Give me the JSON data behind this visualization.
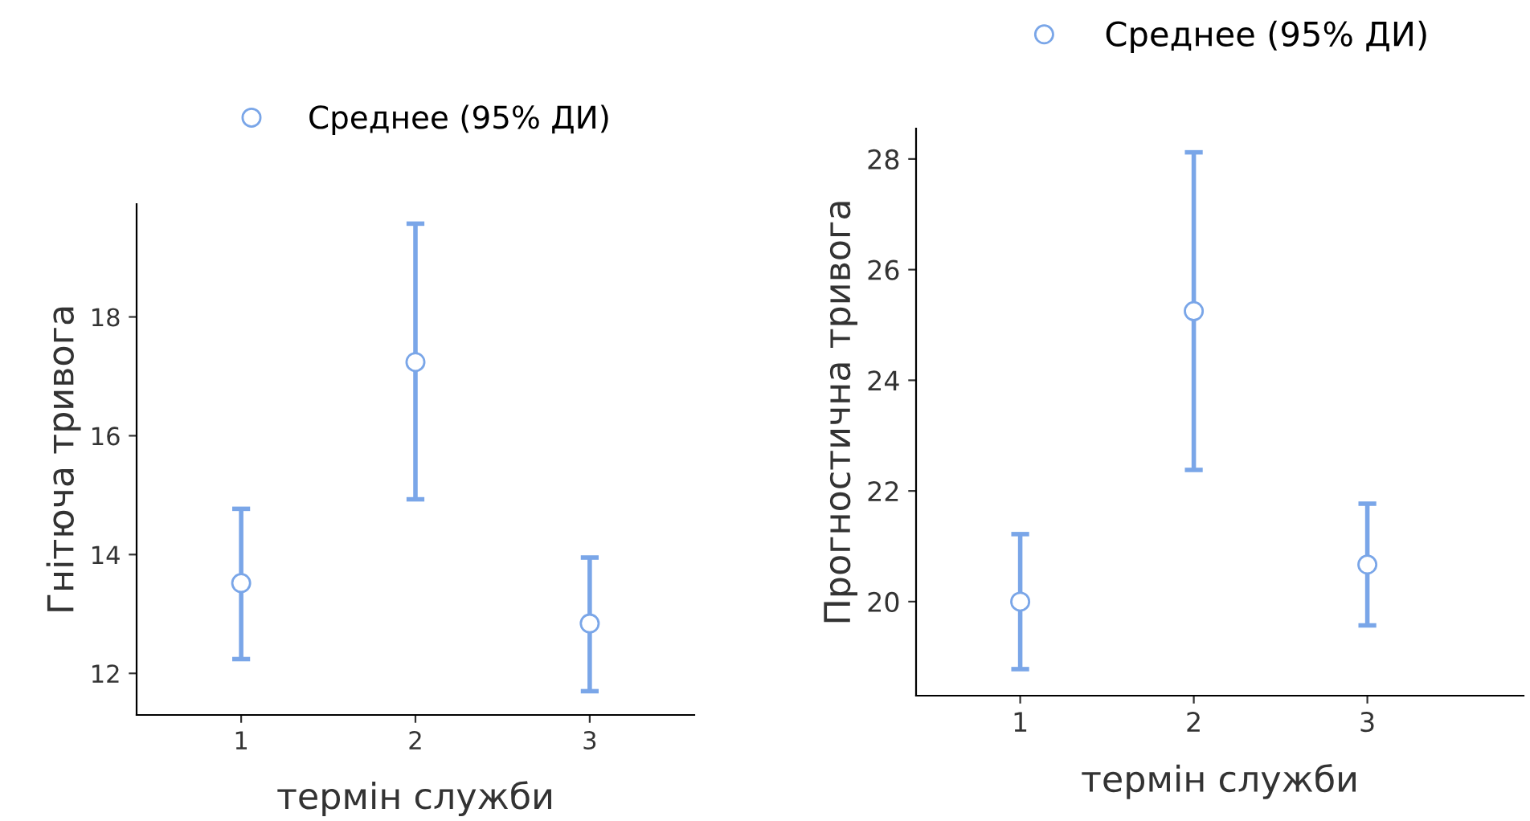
{
  "chart_data": [
    {
      "type": "scatter",
      "xlabel": "термін служби",
      "ylabel": "Гнітюча тривога",
      "categories": [
        "1",
        "2",
        "3"
      ],
      "series": [
        {
          "name": "Среднее (95% ДИ)",
          "color": "#7aa6e8",
          "values": [
            13.52,
            17.24,
            12.84
          ],
          "errors": [
            [
              12.24,
              14.77
            ],
            [
              14.93,
              19.57
            ],
            [
              11.7,
              13.95
            ]
          ]
        }
      ],
      "ylim": [
        11.3,
        19.9
      ],
      "yticks": [
        12,
        14,
        16,
        18
      ],
      "marker": "circle",
      "legend": "top",
      "grid": false
    },
    {
      "type": "scatter",
      "xlabel": "термін служби",
      "ylabel": "Прогностична тривога",
      "categories": [
        "1",
        "2",
        "3"
      ],
      "series": [
        {
          "name": "Среднее (95% ДИ)",
          "color": "#7aa6e8",
          "values": [
            20.0,
            25.25,
            20.67
          ],
          "errors": [
            [
              18.78,
              21.22
            ],
            [
              22.38,
              28.12
            ],
            [
              19.57,
              21.77
            ]
          ]
        }
      ],
      "ylim": [
        18.3,
        28.55
      ],
      "yticks": [
        20,
        22,
        24,
        26,
        28
      ],
      "marker": "circle",
      "legend": "top",
      "grid": false
    }
  ]
}
